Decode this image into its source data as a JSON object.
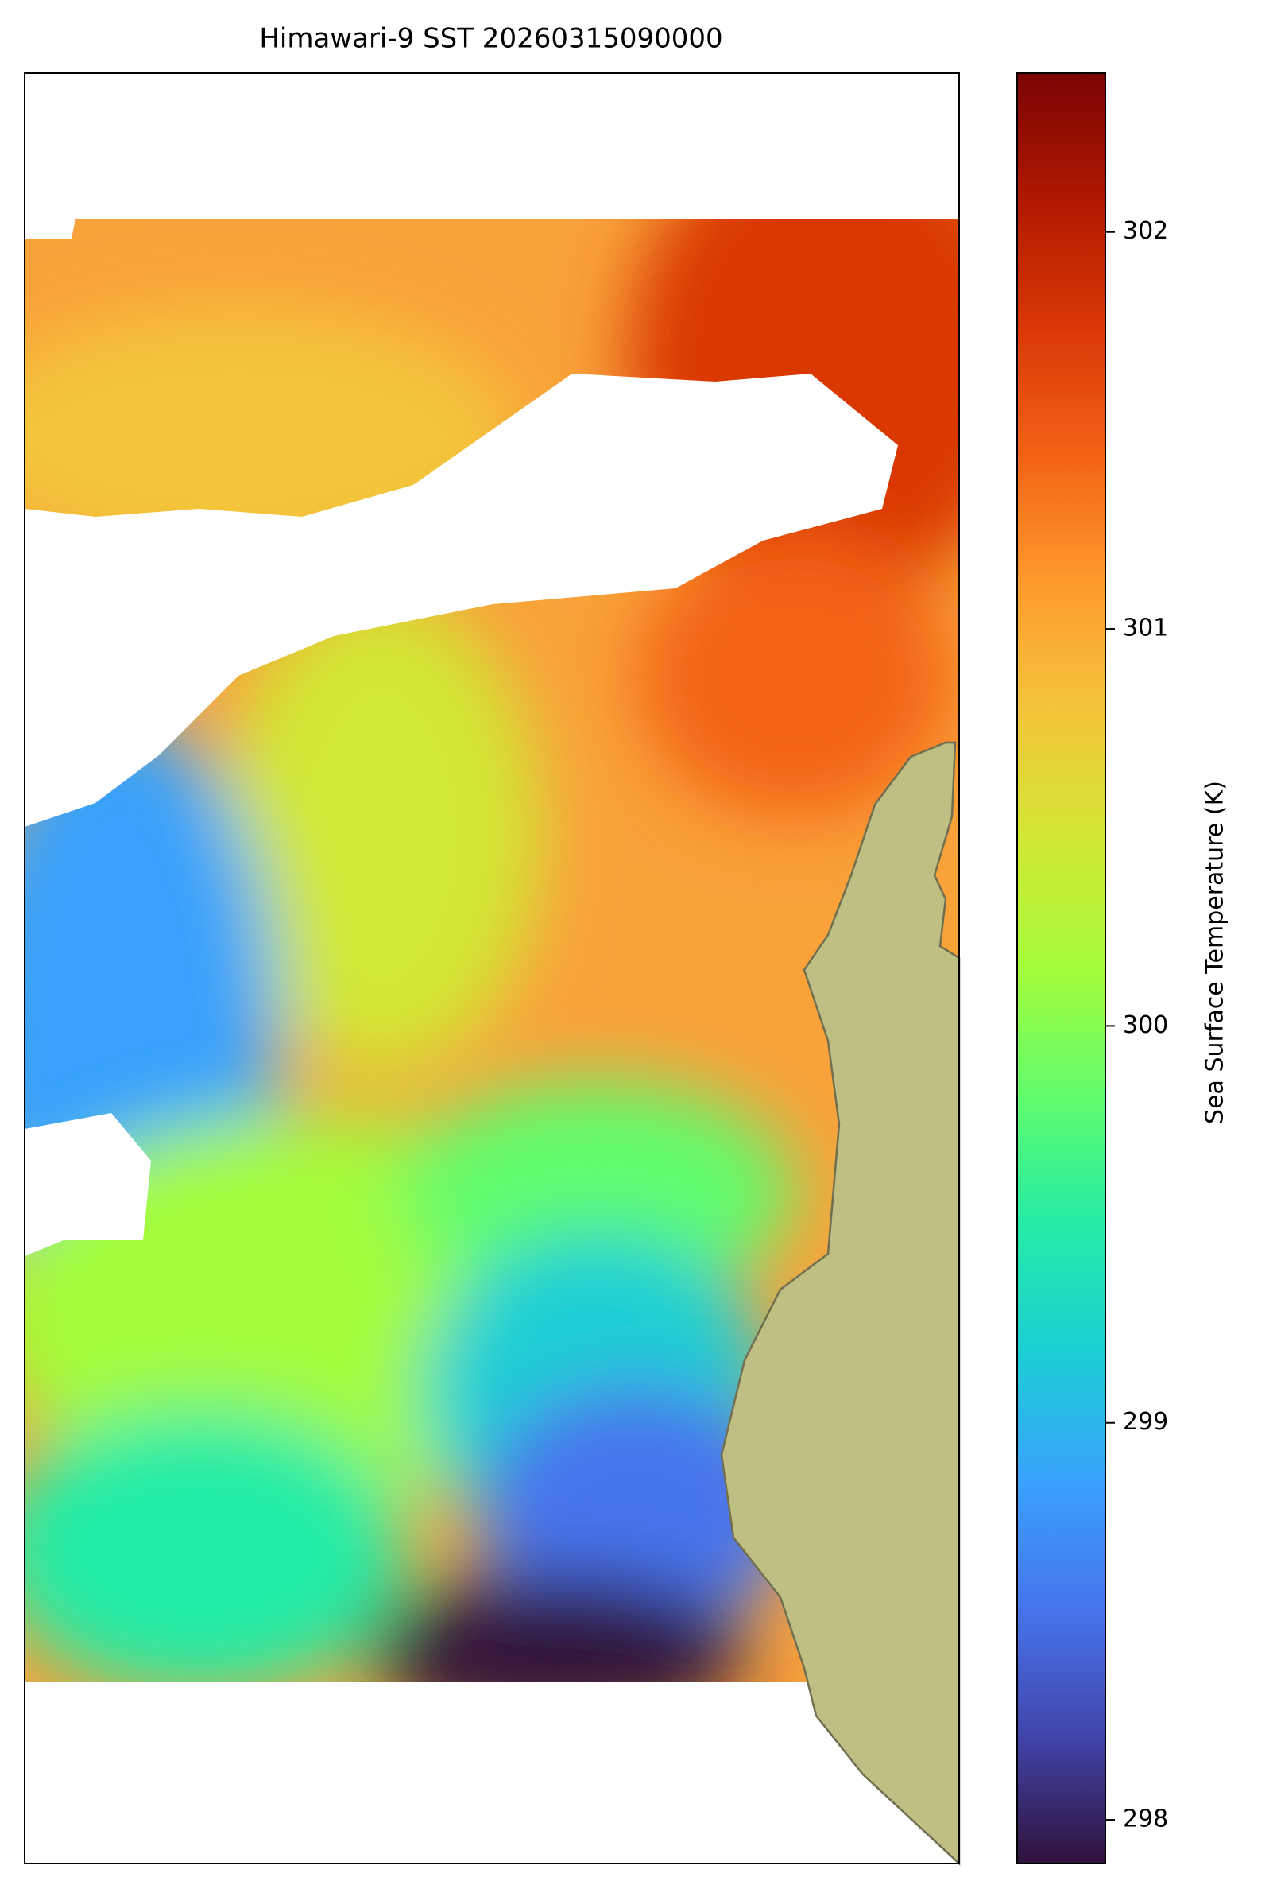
{
  "chart_data": {
    "type": "map",
    "title": "Himawari-9 SST 20260315090000",
    "colorbar": {
      "label": "Sea Surface Temperature (K)",
      "lim": [
        297.89,
        302.4
      ],
      "ticks": [
        298,
        299,
        300,
        301,
        302
      ],
      "colors": [
        "#30123b",
        "#4145ab",
        "#4675ed",
        "#39a2fc",
        "#1bcfd4",
        "#24eca6",
        "#61fc6c",
        "#a4fc3b",
        "#d1e834",
        "#f3c63a",
        "#fe9b2d",
        "#f36315",
        "#d93806",
        "#b11901",
        "#7a0402"
      ]
    }
  }
}
